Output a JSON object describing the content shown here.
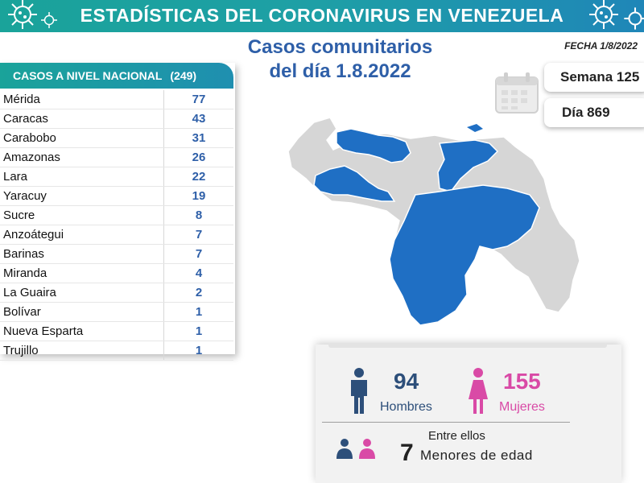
{
  "header": {
    "title": "ESTADÍSTICAS DEL CORONAVIRUS EN VENEZUELA"
  },
  "subtitle": {
    "line1": "Casos comunitarios",
    "line2": "del día 1.8.2022"
  },
  "fecha": "FECHA 1/8/2022",
  "table": {
    "header_label": "CASOS A NIVEL NACIONAL",
    "total": "(249)",
    "rows": [
      {
        "name": "Mérida",
        "value": "77"
      },
      {
        "name": "Caracas",
        "value": "43"
      },
      {
        "name": "Carabobo",
        "value": "31"
      },
      {
        "name": "Amazonas",
        "value": "26"
      },
      {
        "name": "Lara",
        "value": "22"
      },
      {
        "name": "Yaracuy",
        "value": "19"
      },
      {
        "name": "Sucre",
        "value": "8"
      },
      {
        "name": "Anzoátegui",
        "value": "7"
      },
      {
        "name": "Barinas",
        "value": "7"
      },
      {
        "name": "Miranda",
        "value": "4"
      },
      {
        "name": "La Guaira",
        "value": "2"
      },
      {
        "name": "Bolívar",
        "value": "1"
      },
      {
        "name": "Nueva Esparta",
        "value": "1"
      },
      {
        "name": "Trujillo",
        "value": "1"
      }
    ]
  },
  "week": "Semana 125",
  "day": "Día 869",
  "gender": {
    "men_count": "94",
    "men_label": "Hombres",
    "women_count": "155",
    "women_label": "Mujeres",
    "men_color": "#2d4f7a",
    "women_color": "#d94aa6"
  },
  "minors": {
    "intro": "Entre ellos",
    "count": "7",
    "label": "Menores de edad"
  },
  "colors": {
    "accent": "#1aa39a",
    "title_blue": "#2e5fa8",
    "map_highlight": "#1f6fc4",
    "map_base": "#d6d6d6"
  },
  "icons": {
    "virus": "virus-icon",
    "calendar": "calendar-icon",
    "man": "man-icon",
    "woman": "woman-icon"
  }
}
